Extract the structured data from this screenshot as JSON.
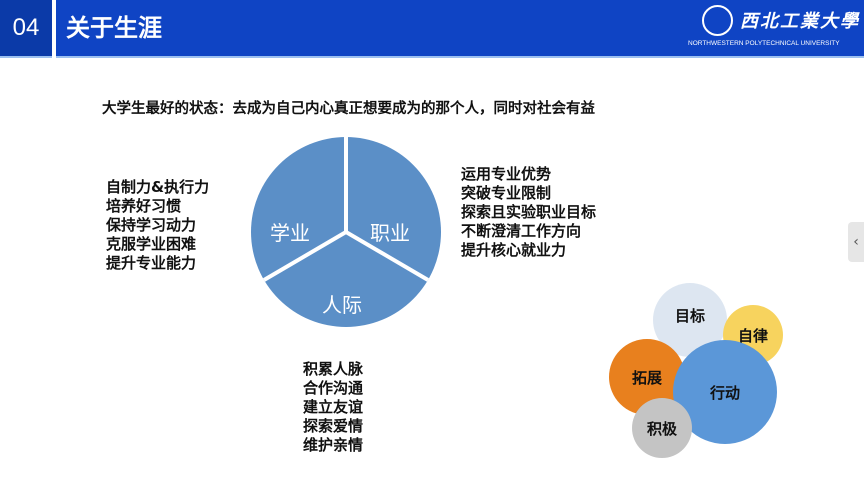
{
  "header": {
    "number": "04",
    "title": "关于生涯",
    "logo": {
      "name": "西北工業大學",
      "english": "NORTHWESTERN POLYTECHNICAL UNIVERSITY"
    }
  },
  "headline": "大学生最好的状态：去成为自己内心真正想要成为的那个人，同时对社会有益",
  "pie": {
    "color": "#5b8fc7",
    "segments": [
      "学业",
      "职业",
      "人际"
    ]
  },
  "academic_list": [
    "自制力&执行力",
    "培养好习惯",
    "保持学习动力",
    "克服学业困难",
    "提升专业能力"
  ],
  "career_list": [
    "运用专业优势",
    "突破专业限制",
    "探索且实验职业目标",
    "不断澄清工作方向",
    "提升核心就业力"
  ],
  "social_list": [
    "积累人脉",
    "合作沟通",
    "建立友谊",
    "探索爱情",
    "维护亲情"
  ],
  "bubbles": [
    {
      "label": "目标",
      "color": "#dde6f1"
    },
    {
      "label": "自律",
      "color": "#f7d35e"
    },
    {
      "label": "拓展",
      "color": "#e8801e"
    },
    {
      "label": "行动",
      "color": "#5b97d8"
    },
    {
      "label": "积极",
      "color": "#c4c4c4"
    }
  ],
  "side_handle": {
    "icon": "chevron-left-icon",
    "glyph": "‹"
  }
}
